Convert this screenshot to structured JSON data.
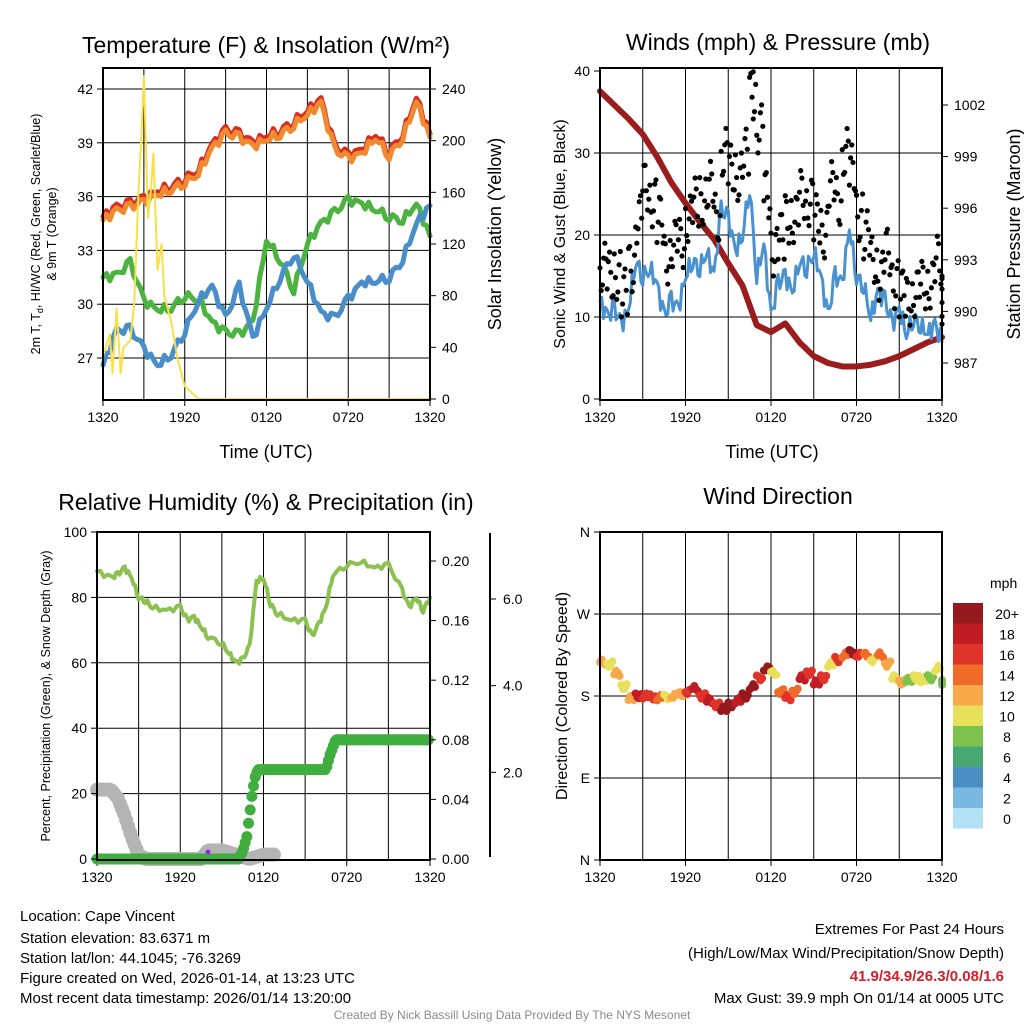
{
  "chart_data": [
    {
      "type": "line",
      "title": "Temperature (F) & Insolation (W/m²)",
      "xlabel": "Time (UTC)",
      "ylabel_parts": {
        "a": "2m T, T",
        "sub": "d",
        "b": ", HI/WC (Red, Green, Scarlet/Blue)",
        "line2": "& 9m T (Orange)"
      },
      "ylabel_right": "Solar Insolation (Yellow)",
      "x_ticks": [
        "1320",
        "1920",
        "0120",
        "0720",
        "1320"
      ],
      "y_ticks": [
        "27",
        "30",
        "33",
        "36",
        "39",
        "42"
      ],
      "y_right_ticks": [
        "0",
        "40",
        "80",
        "120",
        "160",
        "200",
        "240"
      ],
      "x_hours": [
        0,
        1,
        2,
        3,
        4,
        5,
        6,
        7,
        8,
        9,
        10,
        11,
        12,
        13,
        14,
        15,
        16,
        17,
        18,
        19,
        20,
        21,
        22,
        23,
        24
      ],
      "series": [
        {
          "name": "2m Temperature",
          "color": "#d62a22",
          "values": [
            34.9,
            35.4,
            35.6,
            35.9,
            36.3,
            36.6,
            37.0,
            37.5,
            38.9,
            39.7,
            39.5,
            39.0,
            39.4,
            39.7,
            40.2,
            40.8,
            41.4,
            38.8,
            38.3,
            38.6,
            39.5,
            38.5,
            39.5,
            41.5,
            39.5
          ]
        },
        {
          "name": "9m Temperature",
          "color": "#f08a30",
          "values": [
            34.7,
            35.2,
            35.4,
            35.7,
            36.1,
            36.4,
            36.8,
            37.3,
            38.7,
            39.5,
            39.3,
            38.8,
            39.2,
            39.5,
            40.0,
            40.6,
            41.2,
            38.6,
            38.1,
            38.4,
            39.3,
            38.3,
            39.3,
            41.3,
            39.3
          ]
        },
        {
          "name": "Dew Point",
          "color": "#4db340",
          "values": [
            31.5,
            31.6,
            32.3,
            30.2,
            29.7,
            29.8,
            30.5,
            30.3,
            29.0,
            28.4,
            28.3,
            29.0,
            33.6,
            32.5,
            30.8,
            33.4,
            34.5,
            35.1,
            35.8,
            35.6,
            35.3,
            34.9,
            34.7,
            35.6,
            33.8
          ]
        },
        {
          "name": "HI/WC",
          "color": "#4a8ec9",
          "values": [
            26.6,
            28.5,
            28.6,
            27.5,
            26.6,
            27.2,
            28.5,
            30.2,
            31.0,
            29.2,
            31.0,
            28.1,
            29.8,
            31.5,
            32.8,
            31.3,
            29.5,
            29.2,
            30.3,
            31.2,
            31.3,
            31.5,
            32.5,
            34.5,
            35.5
          ]
        },
        {
          "name": "Solar Insolation",
          "color": "#f7e04a",
          "axis": "right",
          "x_hours": [
            0,
            0.5,
            0.7,
            1,
            1.3,
            1.5,
            2,
            2.3,
            2.6,
            2.8,
            3,
            3.3,
            3.5,
            3.7,
            4,
            4.3,
            4.5,
            5,
            5.5,
            6,
            6.5,
            7,
            24
          ],
          "values": [
            33,
            50,
            20,
            70,
            20,
            40,
            45,
            75,
            160,
            200,
            250,
            140,
            160,
            190,
            100,
            120,
            80,
            60,
            30,
            10,
            5,
            0,
            0
          ]
        }
      ]
    },
    {
      "type": "scatter+line",
      "title": "Winds (mph) & Pressure (mb)",
      "xlabel": "Time (UTC)",
      "ylabel": "Sonic Wind & Gust (Blue, Black)",
      "ylabel_right": "Station Pressure (Maroon)",
      "x_ticks": [
        "1320",
        "1920",
        "0120",
        "0720",
        "1320"
      ],
      "y_ticks": [
        "0",
        "10",
        "20",
        "30",
        "40"
      ],
      "y_right_ticks": [
        "987",
        "990",
        "993",
        "996",
        "999",
        "1002"
      ],
      "wind_x_step_hours": 0.5,
      "series": [
        {
          "name": "Sonic Wind",
          "color": "#4a92cf",
          "values": [
            12,
            10,
            11,
            9,
            11,
            17,
            15,
            16,
            14,
            10,
            12,
            11,
            15,
            17,
            16,
            18,
            15,
            23,
            22,
            18,
            20,
            26,
            15,
            19,
            10,
            14,
            15,
            13,
            17,
            16,
            18,
            15,
            10,
            15,
            14,
            21,
            15,
            14,
            10,
            13,
            12,
            9,
            11,
            8,
            10,
            9,
            8,
            9,
            7
          ]
        },
        {
          "name": "Gust",
          "color": "#000000",
          "values": [
            16,
            15,
            15,
            13,
            16,
            22,
            26,
            24,
            22,
            17,
            19,
            19,
            22,
            24,
            24,
            26,
            22,
            30,
            28,
            27,
            30,
            37,
            33,
            25,
            18,
            20,
            22,
            22,
            25,
            24,
            22,
            20,
            26,
            24,
            30,
            28,
            22,
            20,
            17,
            15,
            18,
            14,
            13,
            12,
            13,
            14,
            14,
            17,
            12
          ]
        },
        {
          "name": "Station Pressure",
          "color": "#9b1c1c",
          "axis": "right",
          "x_hours": [
            0,
            1,
            2,
            3,
            4,
            5,
            6,
            7,
            8,
            9,
            10,
            11,
            12,
            13,
            14,
            15,
            16,
            17,
            18,
            19,
            20,
            21,
            22,
            23,
            24
          ],
          "values": [
            1002.8,
            1002.0,
            1001.2,
            1000.3,
            999.0,
            997.5,
            996.3,
            995.2,
            994.2,
            992.8,
            991.5,
            989.2,
            988.8,
            989.3,
            988.2,
            987.4,
            987.0,
            986.8,
            986.8,
            986.9,
            987.1,
            987.4,
            987.8,
            988.2,
            988.5
          ]
        }
      ],
      "max_gust": {
        "value": 39.9,
        "hour": 10.75
      }
    },
    {
      "type": "line",
      "title": "Relative Humidity (%) & Precipitation (in)",
      "ylabel": "Percent, Precipitation (Green), & Snow Depth (Gray)",
      "x_ticks": [
        "1320",
        "1920",
        "0120",
        "0720",
        "1320"
      ],
      "y_ticks": [
        "0",
        "20",
        "40",
        "60",
        "80",
        "100"
      ],
      "y_right_ticks": [
        "0.00",
        "0.04",
        "0.08",
        "0.12",
        "0.16",
        "0.20"
      ],
      "snow_ticks": [
        "2.0",
        "4.0",
        "6.0"
      ],
      "series": [
        {
          "name": "Relative Humidity",
          "color": "#8cc152",
          "x_hours": [
            0,
            1,
            1.5,
            2,
            2.5,
            3,
            3.5,
            4,
            5,
            6,
            6.5,
            7,
            7.5,
            8,
            9,
            9.5,
            10,
            10.5,
            11,
            11.5,
            12,
            12.5,
            13,
            14,
            15,
            15.5,
            16,
            16.5,
            17,
            18,
            19,
            20,
            21,
            22,
            22.5,
            23,
            23.5,
            24
          ],
          "values": [
            88,
            86,
            87,
            89,
            86,
            80,
            79,
            77,
            76,
            77,
            73,
            74,
            71,
            68,
            66,
            63,
            60,
            61,
            65,
            85,
            86,
            78,
            75,
            73,
            73,
            68,
            72,
            77,
            87,
            90,
            91,
            89,
            90,
            82,
            77,
            80,
            76,
            80
          ]
        },
        {
          "name": "Precipitation",
          "color": "#3fae3f",
          "axis": "right",
          "x_hours": [
            0,
            10.2,
            10.5,
            10.8,
            11,
            11.2,
            11.4,
            11.6,
            16.5,
            16.8,
            17.2,
            24
          ],
          "values": [
            0,
            0,
            0.005,
            0.015,
            0.03,
            0.045,
            0.055,
            0.06,
            0.06,
            0.07,
            0.08,
            0.08
          ]
        },
        {
          "name": "Snow Depth",
          "color": "#b4b4b4",
          "axis": "snow",
          "x_hours": [
            0,
            1,
            1.5,
            2,
            2.5,
            3,
            3.5,
            7.5,
            8,
            9,
            10,
            11,
            12,
            12.8
          ],
          "values": [
            1.6,
            1.6,
            1.4,
            1.0,
            0.5,
            0.1,
            0,
            0,
            0.2,
            0.2,
            0.1,
            0,
            0.1,
            0.1
          ]
        }
      ]
    },
    {
      "type": "scatter",
      "title": "Wind Direction",
      "ylabel": "Direction (Colored By Speed)",
      "x_ticks": [
        "1320",
        "1920",
        "0120",
        "0720",
        "1320"
      ],
      "y_ticks": [
        "N",
        "E",
        "S",
        "W",
        "N"
      ],
      "x_step_hours": 0.5,
      "direction_deg": [
        217,
        215,
        205,
        190,
        178,
        180,
        180,
        179,
        178,
        179,
        180,
        182,
        185,
        188,
        180,
        175,
        170,
        166,
        170,
        175,
        180,
        190,
        200,
        210,
        205,
        185,
        178,
        185,
        200,
        205,
        195,
        200,
        215,
        220,
        225,
        228,
        225,
        225,
        220,
        225,
        215,
        200,
        195,
        198,
        200,
        198,
        200,
        210,
        195
      ],
      "colorbar": {
        "title": "mph",
        "labels": [
          "0",
          "2",
          "4",
          "6",
          "8",
          "10",
          "12",
          "14",
          "16",
          "18",
          "20+"
        ],
        "colors": [
          "#b3e2f7",
          "#7ab8e3",
          "#4a8ec4",
          "#48a872",
          "#7cc24d",
          "#e6e05a",
          "#f8a848",
          "#f06a2a",
          "#e0332a",
          "#c01c24",
          "#951a1e"
        ]
      }
    }
  ],
  "footer": {
    "location": "Location: Cape Vincent",
    "elevation": "Station elevation: 83.6371 m",
    "latlon": "Station lat/lon: 44.1045; -76.3269",
    "created": "Figure created on Wed, 2026-01-14, at 13:23 UTC",
    "recent": "Most recent data timestamp: 2026/01/14 13:20:00",
    "extremes_title": "Extremes For Past 24 Hours",
    "extremes_legend": "(High/Low/Max Wind/Precipitation/Snow Depth)",
    "extremes_values": "41.9/34.9/26.3/0.08/1.6",
    "max_gust": "Max Gust: 39.9 mph On 01/14 at 0005 UTC",
    "credit": "Created By Nick Bassill Using Data Provided By The NYS Mesonet",
    "extremes_color": "#d0202a"
  }
}
